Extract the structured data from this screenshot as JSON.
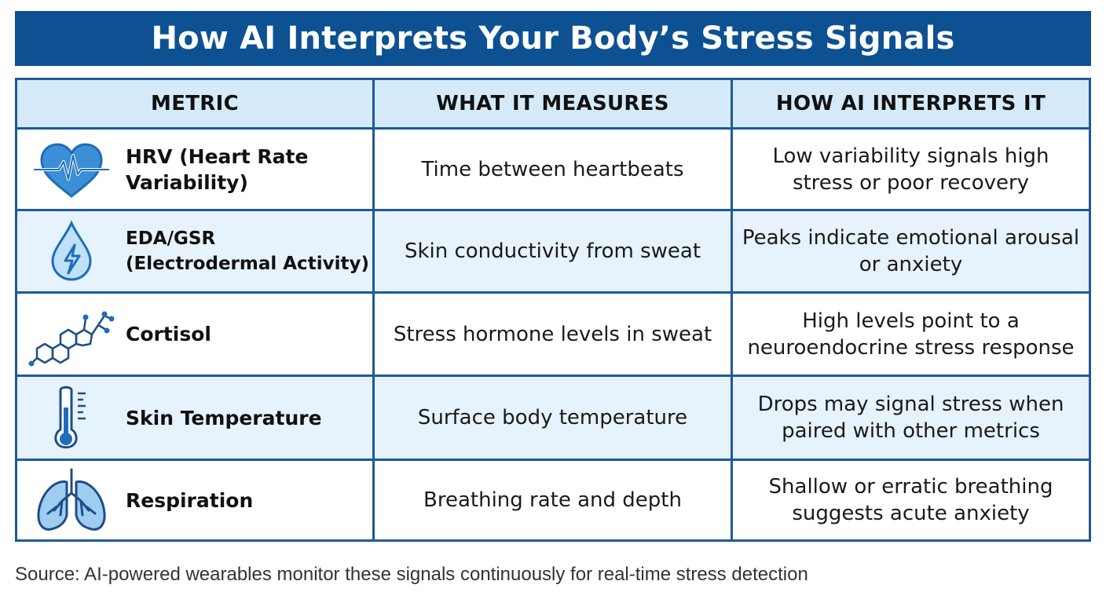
{
  "title": "How AI Interprets Your Body’s Stress Signals",
  "headers": [
    "METRIC",
    "WHAT IT MEASURES",
    "HOW AI INTERPRETS IT"
  ],
  "rows": [
    {
      "icon": "heart-pulse-icon",
      "metric": "HRV (Heart Rate Variability)",
      "measures": "Time between heartbeats",
      "interpretation": "Low variability signals high stress or poor recovery"
    },
    {
      "icon": "sweat-drop-icon",
      "metric": "EDA/GSR (Electrodermal Activity)",
      "measures": "Skin conductivity from sweat",
      "interpretation": "Peaks indicate emotional arousal or anxiety"
    },
    {
      "icon": "molecule-icon",
      "metric": "Cortisol",
      "measures": "Stress hormone levels in sweat",
      "interpretation": "High levels point to a neuroendocrine stress response"
    },
    {
      "icon": "thermometer-icon",
      "metric": "Skin Temperature",
      "measures": "Surface body temperature",
      "interpretation": "Drops may signal stress when paired with other metrics"
    },
    {
      "icon": "lungs-icon",
      "metric": "Respiration",
      "measures": "Breathing rate and depth",
      "interpretation": "Shallow or erratic breathing suggests acute anxiety"
    }
  ],
  "source": "Source: AI-powered wearables monitor these signals continuously for real-time stress detection",
  "colors": {
    "title_bg": "#0d5192",
    "border": "#1e5a96",
    "header_bg": "#d4eaf9",
    "alt_row_bg": "#e6f2fc",
    "icon": "#1e6db8"
  }
}
